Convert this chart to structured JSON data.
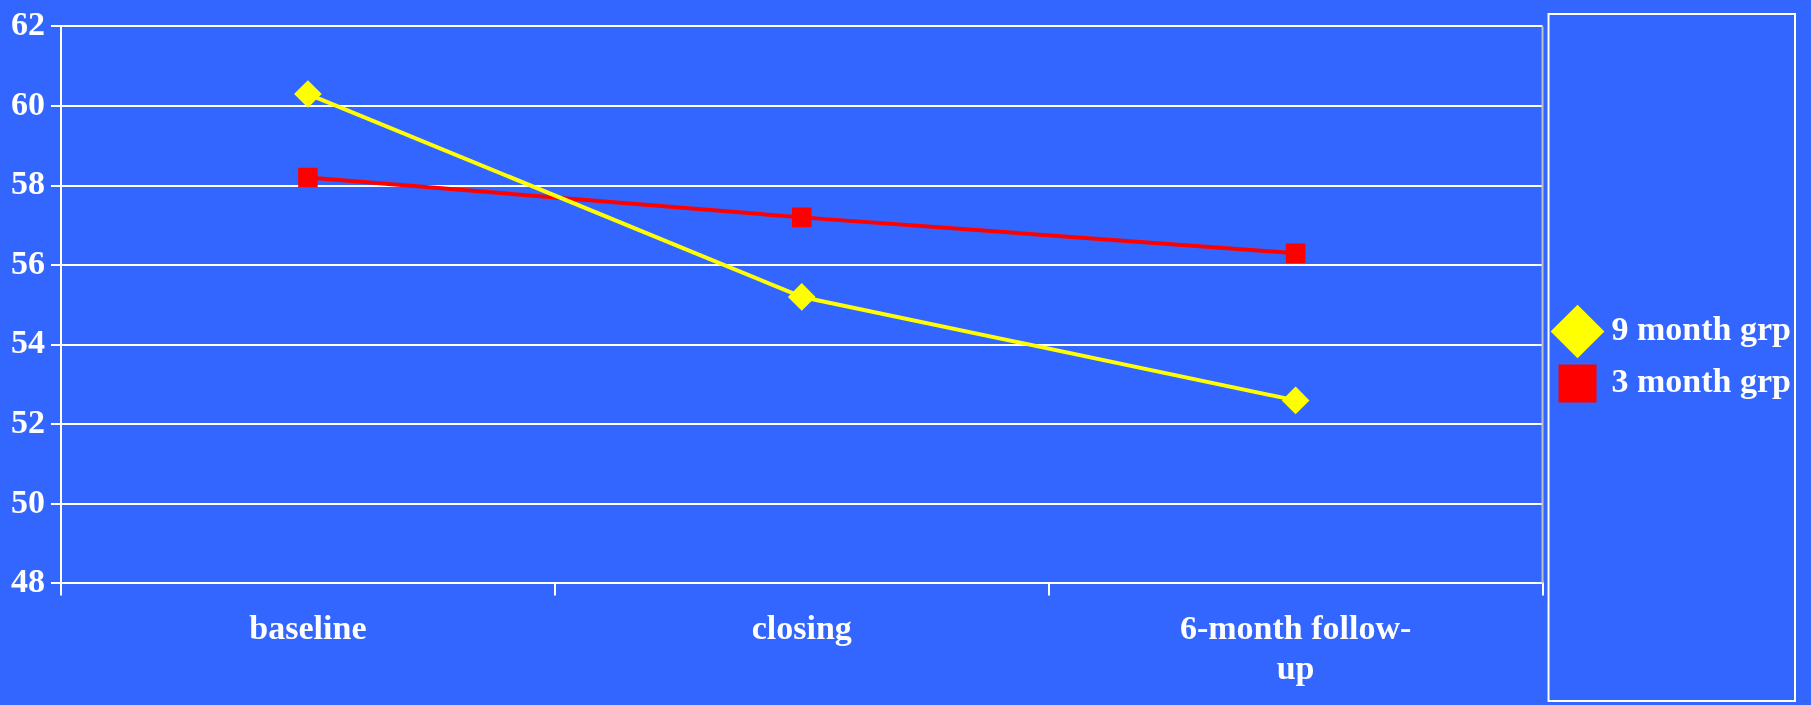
{
  "chart_data": {
    "type": "line",
    "categories": [
      "baseline",
      "closing",
      "6-month follow-up"
    ],
    "series": [
      {
        "name": "9 month grp",
        "color": "#ffff00",
        "marker": "diamond",
        "values": [
          60.3,
          55.2,
          52.6
        ]
      },
      {
        "name": "3 month grp",
        "color": "#ff0000",
        "marker": "square",
        "values": [
          58.2,
          57.2,
          56.3
        ]
      }
    ],
    "ylim": [
      48,
      62
    ],
    "yticks": [
      48,
      50,
      52,
      54,
      56,
      58,
      60,
      62
    ],
    "grid": "y",
    "legend": "right",
    "line_style": "solid"
  }
}
